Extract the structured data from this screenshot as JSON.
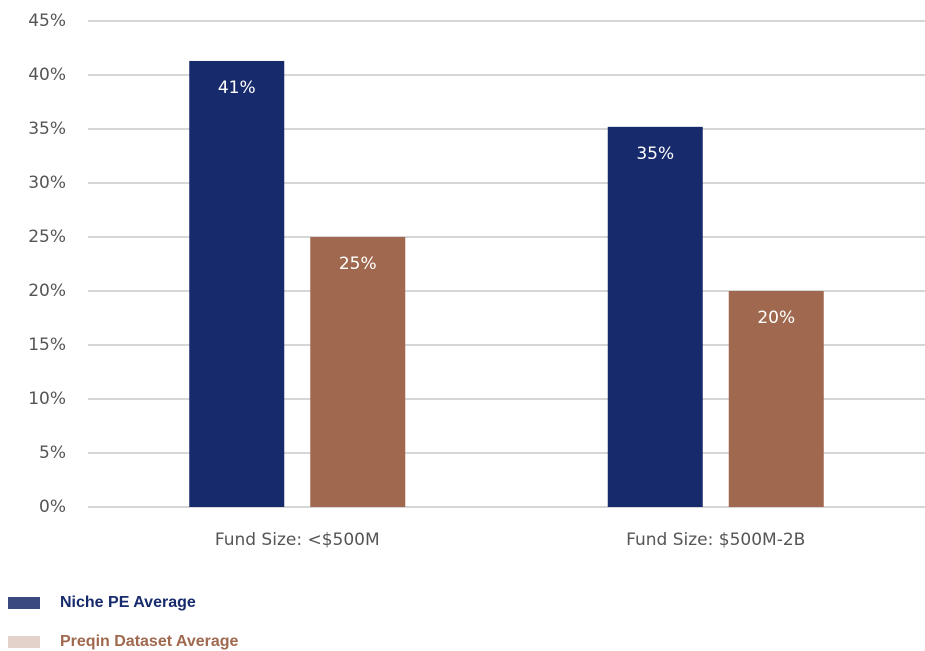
{
  "chart_data": {
    "type": "bar",
    "categories": [
      "Fund Size: <$500M",
      "Fund Size: $500M-2B"
    ],
    "series": [
      {
        "name": "Niche PE Average",
        "color": "#172a6b",
        "values": [
          41.3,
          35.2
        ],
        "value_labels": [
          "41%",
          "35%"
        ]
      },
      {
        "name": "Preqin Dataset Average",
        "color": "#a0694f",
        "values": [
          25,
          20
        ],
        "value_labels": [
          "25%",
          "20%"
        ]
      }
    ],
    "ylim": [
      0,
      45
    ],
    "yticks": [
      {
        "value": 0,
        "label": "0%"
      },
      {
        "value": 5,
        "label": "5%"
      },
      {
        "value": 10,
        "label": "10%"
      },
      {
        "value": 15,
        "label": "15%"
      },
      {
        "value": 20,
        "label": "20%"
      },
      {
        "value": 25,
        "label": "25%"
      },
      {
        "value": 30,
        "label": "30%"
      },
      {
        "value": 35,
        "label": "35%"
      },
      {
        "value": 40,
        "label": "40%"
      },
      {
        "value": 45,
        "label": "45%"
      }
    ],
    "grid": true,
    "legend": "bottom-left"
  }
}
